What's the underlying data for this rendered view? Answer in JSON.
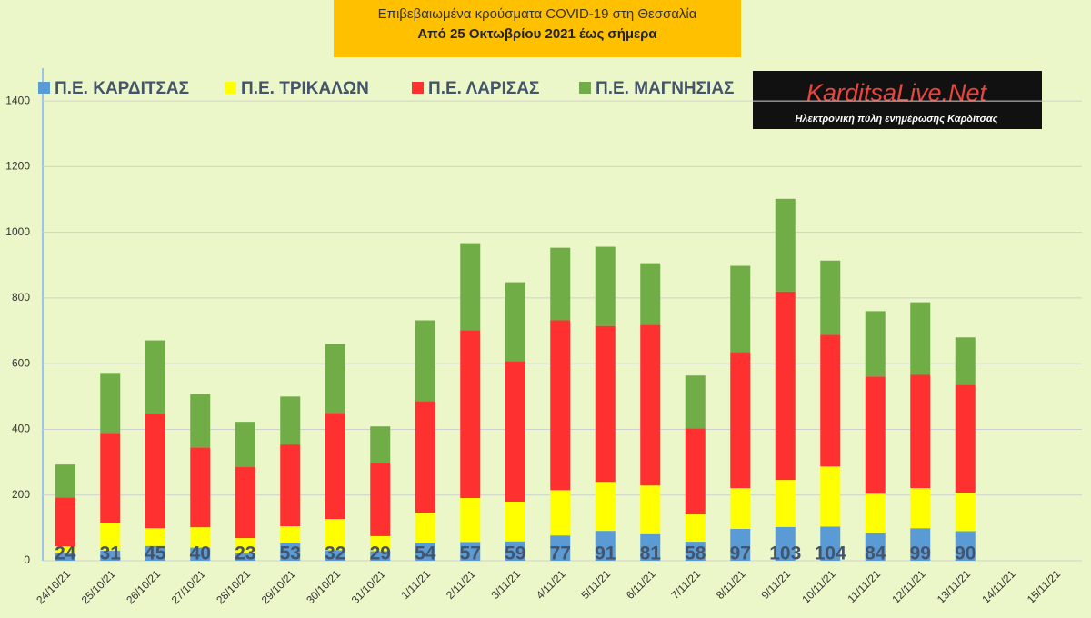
{
  "chart_data": {
    "type": "stacked-bar",
    "title": "Επιβεβαιωμένα κρούσματα COVID-19 στη Θεσσαλία",
    "subtitle": "Από 25 Οκτωβρίου 2021 έως σήμερα",
    "logo": {
      "name": "KarditsaLive.Net",
      "tagline": "Ηλεκτρονική πύλη ενημέρωσης Καρδίτσας"
    },
    "categories": [
      "24/10/21",
      "25/10/21",
      "26/10/21",
      "27/10/21",
      "28/10/21",
      "29/10/21",
      "30/10/21",
      "31/10/21",
      "1/11/21",
      "2/11/21",
      "3/11/21",
      "4/11/21",
      "5/11/21",
      "6/11/21",
      "7/11/21",
      "8/11/21",
      "9/11/21",
      "10/11/21",
      "11/11/21",
      "12/11/21",
      "13/11/21",
      "14/11/21",
      "15/11/21"
    ],
    "series": [
      {
        "name": "Π.Ε. ΚΑΡΔΙΤΣΑΣ",
        "color": "#5b9bd5",
        "values": [
          24,
          31,
          45,
          40,
          23,
          53,
          32,
          29,
          54,
          57,
          59,
          77,
          91,
          81,
          58,
          97,
          103,
          104,
          84,
          99,
          90,
          null,
          null
        ]
      },
      {
        "name": "Π.Ε. ΤΡΙΚΑΛΩΝ",
        "color": "#ffff00",
        "values": [
          20,
          85,
          54,
          62,
          46,
          52,
          95,
          46,
          92,
          134,
          121,
          138,
          149,
          148,
          83,
          124,
          143,
          183,
          120,
          122,
          117,
          null,
          null
        ]
      },
      {
        "name": "Π.Ε. ΛΑΡΙΣΑΣ",
        "color": "#ff3030",
        "values": [
          149,
          273,
          348,
          243,
          216,
          249,
          323,
          223,
          340,
          511,
          428,
          517,
          475,
          489,
          262,
          414,
          574,
          401,
          357,
          345,
          329,
          null,
          null
        ]
      },
      {
        "name": "Π.Ε. ΜΑΓΝΗΣΙΑΣ",
        "color": "#70ad47",
        "values": [
          100,
          183,
          224,
          163,
          138,
          146,
          210,
          111,
          246,
          265,
          240,
          221,
          241,
          188,
          161,
          263,
          282,
          226,
          199,
          221,
          144,
          null,
          null
        ]
      }
    ],
    "ylim": [
      0,
      1500
    ],
    "yticks": [
      0,
      200,
      400,
      600,
      800,
      1000,
      1200,
      1400
    ],
    "grid": true
  }
}
